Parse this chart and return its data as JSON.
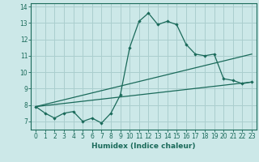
{
  "title": "",
  "xlabel": "Humidex (Indice chaleur)",
  "background_color": "#cce8e8",
  "grid_color": "#aacece",
  "line_color": "#1a6a5a",
  "xlim": [
    -0.5,
    23.5
  ],
  "ylim": [
    6.5,
    14.2
  ],
  "xticks": [
    0,
    1,
    2,
    3,
    4,
    5,
    6,
    7,
    8,
    9,
    10,
    11,
    12,
    13,
    14,
    15,
    16,
    17,
    18,
    19,
    20,
    21,
    22,
    23
  ],
  "yticks": [
    7,
    8,
    9,
    10,
    11,
    12,
    13,
    14
  ],
  "series1_x": [
    0,
    1,
    2,
    3,
    4,
    5,
    6,
    7,
    8,
    9,
    10,
    11,
    12,
    13,
    14,
    15,
    16,
    17,
    18,
    19,
    20,
    21,
    22,
    23
  ],
  "series1_y": [
    7.9,
    7.5,
    7.2,
    7.5,
    7.6,
    7.0,
    7.2,
    6.9,
    7.5,
    8.6,
    11.5,
    13.1,
    13.6,
    12.9,
    13.1,
    12.9,
    11.7,
    11.1,
    11.0,
    11.1,
    9.6,
    9.5,
    9.3,
    9.4
  ],
  "series2_x": [
    0,
    23
  ],
  "series2_y": [
    7.9,
    9.4
  ],
  "series3_x": [
    0,
    23
  ],
  "series3_y": [
    7.9,
    11.1
  ]
}
